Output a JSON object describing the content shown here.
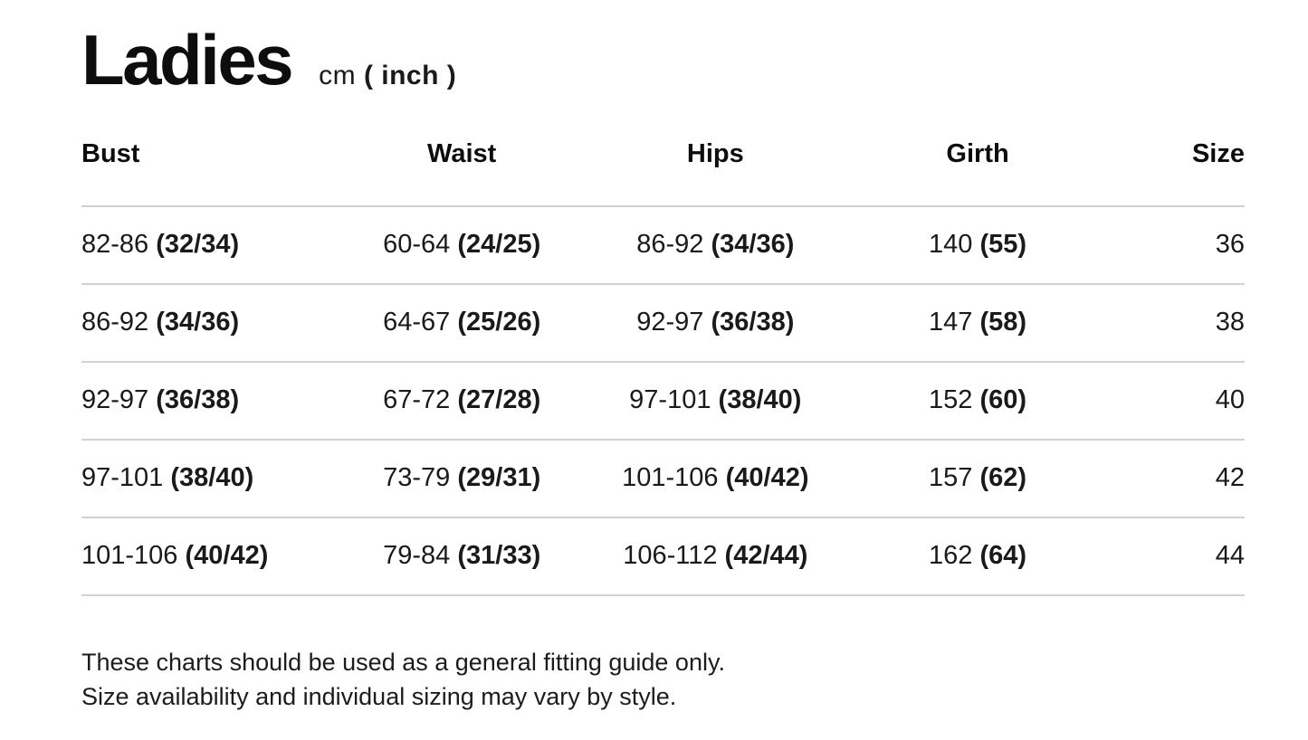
{
  "page": {
    "title": "Ladies",
    "unit": {
      "prefix": "cm ",
      "bold": "( inch )"
    }
  },
  "table": {
    "headers": [
      "Bust",
      "Waist",
      "Hips",
      "Girth",
      "Size"
    ],
    "rows": [
      {
        "bust": {
          "cm": "82-86",
          "inch": "(32/34)"
        },
        "waist": {
          "cm": "60-64",
          "inch": "(24/25)"
        },
        "hips": {
          "cm": "86-92",
          "inch": "(34/36)"
        },
        "girth": {
          "cm": "140",
          "inch": "(55)"
        },
        "size": "36"
      },
      {
        "bust": {
          "cm": "86-92",
          "inch": "(34/36)"
        },
        "waist": {
          "cm": "64-67",
          "inch": "(25/26)"
        },
        "hips": {
          "cm": "92-97",
          "inch": "(36/38)"
        },
        "girth": {
          "cm": "147",
          "inch": "(58)"
        },
        "size": "38"
      },
      {
        "bust": {
          "cm": "92-97",
          "inch": "(36/38)"
        },
        "waist": {
          "cm": "67-72",
          "inch": "(27/28)"
        },
        "hips": {
          "cm": "97-101",
          "inch": "(38/40)"
        },
        "girth": {
          "cm": "152",
          "inch": "(60)"
        },
        "size": "40"
      },
      {
        "bust": {
          "cm": "97-101",
          "inch": "(38/40)"
        },
        "waist": {
          "cm": "73-79",
          "inch": "(29/31)"
        },
        "hips": {
          "cm": "101-106",
          "inch": "(40/42)"
        },
        "girth": {
          "cm": "157",
          "inch": "(62)"
        },
        "size": "42"
      },
      {
        "bust": {
          "cm": "101-106",
          "inch": "(40/42)"
        },
        "waist": {
          "cm": "79-84",
          "inch": "(31/33)"
        },
        "hips": {
          "cm": "106-112",
          "inch": "(42/44)"
        },
        "girth": {
          "cm": "162",
          "inch": "(64)"
        },
        "size": "44"
      }
    ]
  },
  "notes": {
    "line1": "These charts should be used as a general fitting guide only.",
    "line2": "Size availability and individual sizing may vary by style."
  },
  "colors": {
    "text": "#111111",
    "divider": "#d2d2d2",
    "background": "#ffffff"
  }
}
